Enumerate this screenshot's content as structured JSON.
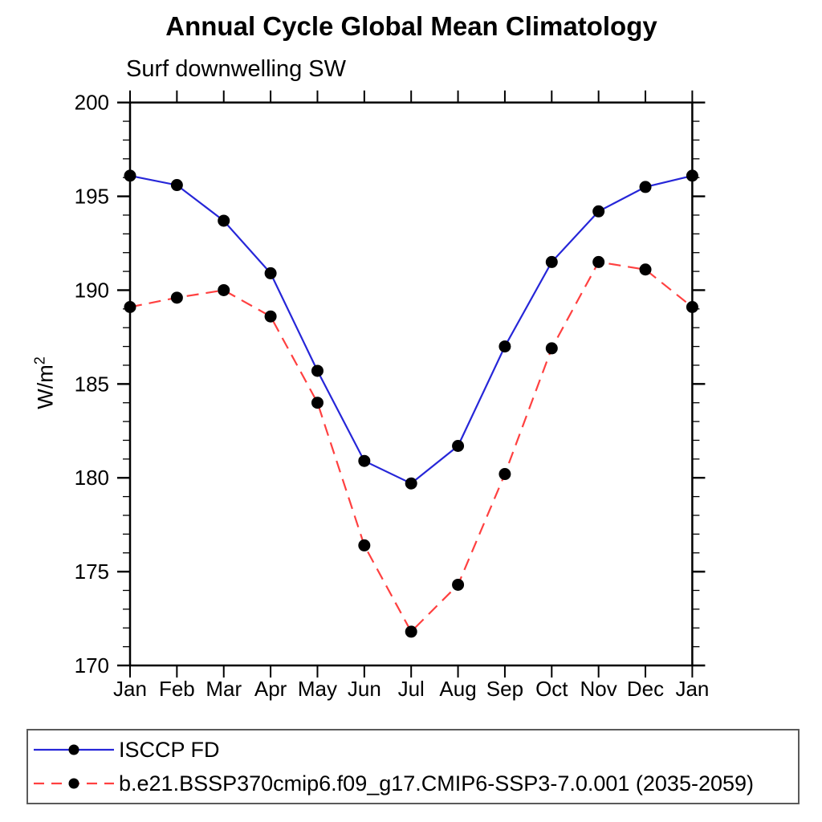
{
  "title": "Annual Cycle Global Mean Climatology",
  "subtitle": "Surf downwelling SW",
  "chart_data": {
    "type": "line",
    "title": "Annual Cycle Global Mean Climatology",
    "subtitle": "Surf downwelling SW",
    "ylabel": "W/m^2",
    "ylabel_base": "W/m",
    "ylabel_sup": "2",
    "xlabel": "",
    "categories": [
      "Jan",
      "Feb",
      "Mar",
      "Apr",
      "May",
      "Jun",
      "Jul",
      "Aug",
      "Sep",
      "Oct",
      "Nov",
      "Dec",
      "Jan"
    ],
    "ylim": [
      170,
      200
    ],
    "ytick_major": [
      170,
      175,
      180,
      185,
      190,
      195,
      200
    ],
    "ytick_minor_step": 1,
    "grid": false,
    "legend_position": "bottom",
    "marker": {
      "shape": "circle",
      "color": "#000000",
      "radius": 7.5
    },
    "axis_color": "#000000",
    "series": [
      {
        "name": "ISCCP FD",
        "color": "#2626d8",
        "line_style": "solid",
        "values": [
          196.1,
          195.6,
          193.7,
          190.9,
          185.7,
          180.9,
          179.7,
          181.7,
          187.0,
          191.5,
          194.2,
          195.5,
          196.1
        ]
      },
      {
        "name": "b.e21.BSSP370cmip6.f09_g17.CMIP6-SSP3-7.0.001 (2035-2059)",
        "color": "#ff4040",
        "line_style": "dashed",
        "values": [
          189.1,
          189.6,
          190.0,
          188.6,
          184.0,
          176.4,
          171.8,
          174.3,
          180.2,
          186.9,
          191.5,
          191.1,
          189.1
        ]
      }
    ]
  }
}
